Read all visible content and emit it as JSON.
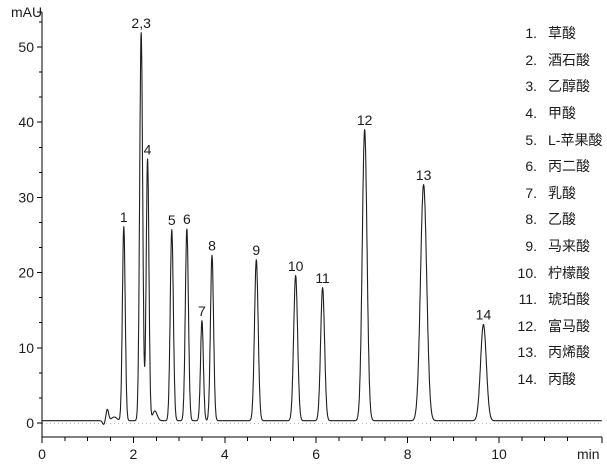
{
  "axes": {
    "y_unit": "mAU",
    "x_unit": "min"
  },
  "colors": {
    "background": "#ffffff",
    "axis": "#000000",
    "trace": "#1f1f1f",
    "zero_line": "#b8b8b8",
    "text": "#1c1c1c"
  },
  "chart_data": {
    "type": "line",
    "title": "",
    "xlabel": "min",
    "ylabel": "mAU",
    "xlim": [
      0,
      12.25
    ],
    "ylim": [
      -2,
      54.7
    ],
    "x_major_ticks": [
      0,
      2,
      4,
      6,
      8,
      10
    ],
    "x_minor_step": 0.5,
    "y_major_ticks": [
      0,
      10,
      20,
      30,
      40,
      50
    ],
    "y_minor_step": 3.3333,
    "grid": false,
    "legend_position": "right",
    "baseline_mAU": 0.3,
    "peaks": [
      {
        "label": "1",
        "name": "草酸",
        "rt_min": 1.79,
        "height_mAU": 25.8,
        "sigma_min": 0.031
      },
      {
        "label": "2,3",
        "name": "酒石酸, 乙醇酸",
        "rt_min": 2.17,
        "height_mAU": 51.6,
        "sigma_min": 0.033
      },
      {
        "label": "4",
        "name": "甲酸",
        "rt_min": 2.31,
        "height_mAU": 34.8,
        "sigma_min": 0.03
      },
      {
        "label": "5",
        "name": "L-苹果酸",
        "rt_min": 2.84,
        "height_mAU": 25.4,
        "sigma_min": 0.034
      },
      {
        "label": "6",
        "name": "丙二酸",
        "rt_min": 3.17,
        "height_mAU": 25.5,
        "sigma_min": 0.034
      },
      {
        "label": "7",
        "name": "乳酸",
        "rt_min": 3.5,
        "height_mAU": 13.3,
        "sigma_min": 0.031
      },
      {
        "label": "8",
        "name": "乙酸",
        "rt_min": 3.72,
        "height_mAU": 22.0,
        "sigma_min": 0.034
      },
      {
        "label": "9",
        "name": "马来酸",
        "rt_min": 4.69,
        "height_mAU": 21.4,
        "sigma_min": 0.04
      },
      {
        "label": "10",
        "name": "柠檬酸",
        "rt_min": 5.55,
        "height_mAU": 19.3,
        "sigma_min": 0.043
      },
      {
        "label": "11",
        "name": "琥珀酸",
        "rt_min": 6.14,
        "height_mAU": 17.7,
        "sigma_min": 0.043
      },
      {
        "label": "12",
        "name": "富马酸",
        "rt_min": 7.06,
        "height_mAU": 38.7,
        "sigma_min": 0.052
      },
      {
        "label": "13",
        "name": "丙烯酸",
        "rt_min": 8.35,
        "height_mAU": 31.4,
        "sigma_min": 0.068
      },
      {
        "label": "14",
        "name": "丙酸",
        "rt_min": 9.66,
        "height_mAU": 12.8,
        "sigma_min": 0.063
      }
    ],
    "baseline_artifacts": [
      {
        "rt_min": 1.35,
        "height_mAU": -0.5,
        "sigma_min": 0.025
      },
      {
        "rt_min": 1.43,
        "height_mAU": 1.5,
        "sigma_min": 0.028
      },
      {
        "rt_min": 1.58,
        "height_mAU": 0.5,
        "sigma_min": 0.06
      },
      {
        "rt_min": 2.47,
        "height_mAU": 1.3,
        "sigma_min": 0.05
      }
    ]
  },
  "legend": {
    "items": [
      {
        "num": "1.",
        "name": "草酸"
      },
      {
        "num": "2.",
        "name": "酒石酸"
      },
      {
        "num": "3.",
        "name": "乙醇酸"
      },
      {
        "num": "4.",
        "name": "甲酸"
      },
      {
        "num": "5.",
        "name": "L-苹果酸"
      },
      {
        "num": "6.",
        "name": "丙二酸"
      },
      {
        "num": "7.",
        "name": "乳酸"
      },
      {
        "num": "8.",
        "name": "乙酸"
      },
      {
        "num": "9.",
        "name": "马来酸"
      },
      {
        "num": "10.",
        "name": "柠檬酸"
      },
      {
        "num": "11.",
        "name": "琥珀酸"
      },
      {
        "num": "12.",
        "name": "富马酸"
      },
      {
        "num": "13.",
        "name": "丙烯酸"
      },
      {
        "num": "14.",
        "name": "丙酸"
      }
    ]
  }
}
